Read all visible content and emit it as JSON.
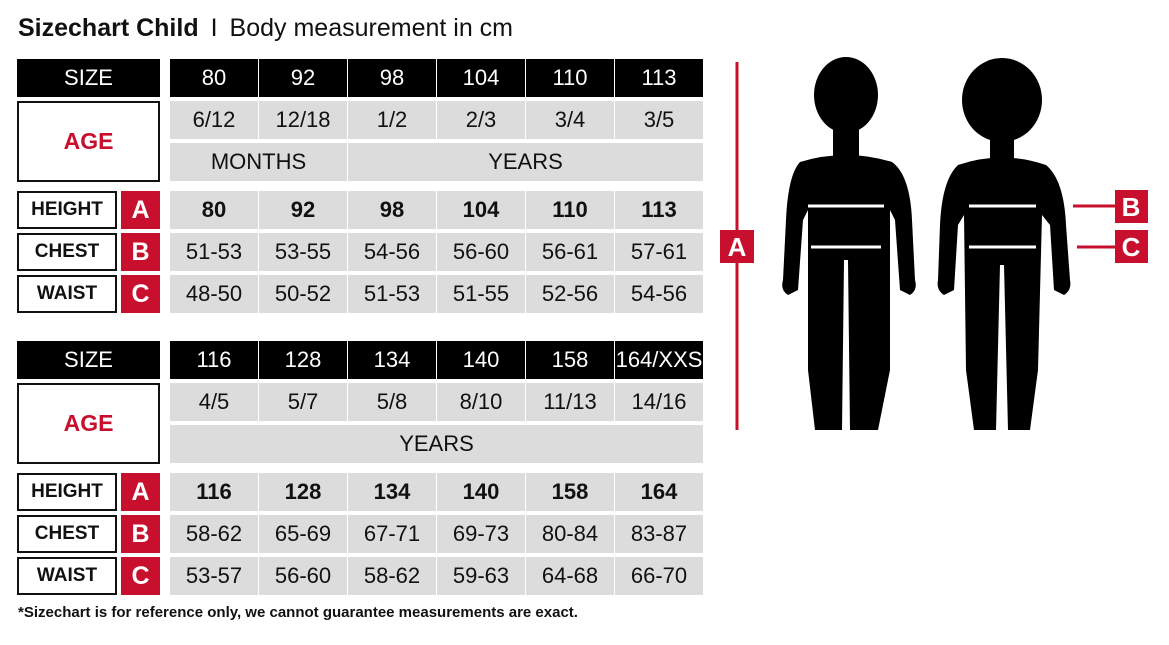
{
  "title": {
    "bold": "Sizechart Child",
    "separator": "I",
    "subtitle": "Body measurement in cm"
  },
  "labels": {
    "size": "SIZE",
    "age": "AGE",
    "height": "HEIGHT",
    "chest": "CHEST",
    "waist": "WAIST",
    "letter_a": "A",
    "letter_b": "B",
    "letter_c": "C"
  },
  "tables": [
    {
      "sizes": [
        "80",
        "92",
        "98",
        "104",
        "110",
        "113"
      ],
      "ages": [
        "6/12",
        "12/18",
        "1/2",
        "2/3",
        "3/4",
        "3/5"
      ],
      "age_units": [
        {
          "label": "MONTHS",
          "span": 2
        },
        {
          "label": "YEARS",
          "span": 4
        }
      ],
      "height": [
        "80",
        "92",
        "98",
        "104",
        "110",
        "113"
      ],
      "chest": [
        "51-53",
        "53-55",
        "54-56",
        "56-60",
        "56-61",
        "57-61"
      ],
      "waist": [
        "48-50",
        "50-52",
        "51-53",
        "51-55",
        "52-56",
        "54-56"
      ]
    },
    {
      "sizes": [
        "116",
        "128",
        "134",
        "140",
        "158",
        "164/XXS"
      ],
      "ages": [
        "4/5",
        "5/7",
        "5/8",
        "8/10",
        "11/13",
        "14/16"
      ],
      "age_units": [
        {
          "label": "YEARS",
          "span": 6
        }
      ],
      "height": [
        "116",
        "128",
        "134",
        "140",
        "158",
        "164"
      ],
      "chest": [
        "58-62",
        "65-69",
        "67-71",
        "69-73",
        "80-84",
        "83-87"
      ],
      "waist": [
        "53-57",
        "56-60",
        "58-62",
        "59-63",
        "64-68",
        "66-70"
      ]
    }
  ],
  "figure": {
    "marker_a": "A",
    "marker_b": "B",
    "marker_c": "C"
  },
  "footnote": "*Sizechart is for reference only, we cannot guarantee measurements are exact.",
  "colors": {
    "accent": "#c8102e",
    "header": "#000000",
    "cell": "#dcdcdc"
  }
}
